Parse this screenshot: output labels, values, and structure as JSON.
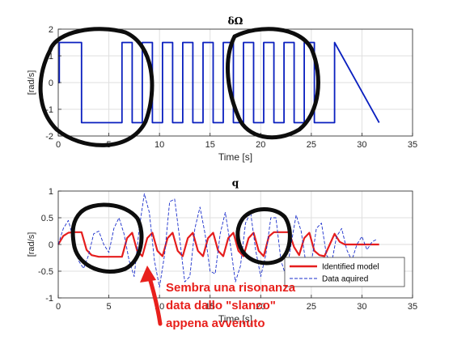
{
  "chart_data": [
    {
      "type": "line",
      "title": "δΩ",
      "xlabel": "Time [s]",
      "ylabel": "[rad/s]",
      "xlim": [
        0,
        35
      ],
      "ylim": [
        -2,
        2
      ],
      "xticks": [
        "0",
        "5",
        "10",
        "15",
        "20",
        "25",
        "30",
        "35"
      ],
      "yticks": [
        "-2",
        "-1",
        "0",
        "1",
        "2"
      ],
      "grid": true,
      "series": [
        {
          "name": "",
          "color": "#0a1fbf",
          "x": [
            0,
            0.1,
            0.1,
            2.3,
            2.3,
            6.3,
            6.3,
            7.3,
            7.3,
            8.3,
            8.3,
            9.3,
            9.3,
            10.3,
            10.3,
            11.3,
            11.3,
            12.3,
            12.3,
            13.3,
            13.3,
            14.3,
            14.3,
            15.3,
            15.3,
            16.3,
            16.3,
            17.3,
            17.3,
            18.3,
            18.3,
            19.3,
            19.3,
            20.3,
            20.3,
            21.3,
            21.3,
            22.3,
            22.3,
            23.3,
            23.3,
            24.3,
            24.3,
            25.3,
            25.3,
            27.3,
            27.3,
            31.7
          ],
          "y": [
            0,
            0,
            1.5,
            1.5,
            -1.5,
            -1.5,
            1.5,
            1.5,
            -1.5,
            -1.5,
            1.5,
            1.5,
            -1.5,
            -1.5,
            1.5,
            1.5,
            -1.5,
            -1.5,
            1.5,
            1.5,
            -1.5,
            -1.5,
            1.5,
            1.5,
            -1.5,
            -1.5,
            1.5,
            1.5,
            -1.5,
            -1.5,
            1.5,
            1.5,
            -1.5,
            -1.5,
            1.5,
            1.5,
            -1.5,
            -1.5,
            1.5,
            1.5,
            -1.5,
            -1.5,
            1.5,
            1.5,
            -1.5,
            -1.5,
            1.5,
            -1.5
          ]
        }
      ]
    },
    {
      "type": "line",
      "title": "q",
      "xlabel": "Time [s]",
      "ylabel": "[rad/s]",
      "xlim": [
        0,
        35
      ],
      "ylim": [
        -1,
        1
      ],
      "xticks": [
        "0",
        "5",
        "10",
        "15",
        "20",
        "25",
        "30",
        "35"
      ],
      "yticks": [
        "-1",
        "-0.5",
        "0",
        "0.5",
        "1"
      ],
      "grid": true,
      "legend": "bottom-right",
      "series": [
        {
          "name": "Identified model",
          "color": "#e51d1d",
          "style": "solid",
          "x": [
            0,
            0.5,
            1.0,
            1.5,
            2.3,
            2.8,
            3.3,
            4.0,
            5.0,
            6.3,
            6.8,
            7.3,
            7.8,
            8.3,
            8.8,
            9.3,
            9.8,
            10.3,
            10.8,
            11.3,
            11.8,
            12.3,
            12.8,
            13.3,
            13.8,
            14.3,
            14.8,
            15.3,
            15.8,
            16.3,
            16.8,
            17.3,
            17.8,
            18.3,
            18.8,
            19.3,
            19.8,
            20.3,
            20.8,
            21.3,
            21.8,
            22.3,
            22.8,
            23.3,
            23.8,
            24.3,
            24.8,
            25.3,
            25.8,
            26.3,
            27.3,
            27.8,
            28.3,
            29.0,
            30.0,
            31.7
          ],
          "y": [
            0,
            0.16,
            0.22,
            0.23,
            0.23,
            -0.1,
            -0.2,
            -0.23,
            -0.23,
            -0.23,
            0.12,
            0.22,
            -0.12,
            -0.22,
            0.12,
            0.22,
            -0.12,
            -0.22,
            0.12,
            0.22,
            -0.12,
            -0.22,
            0.12,
            0.22,
            -0.12,
            -0.22,
            0.12,
            0.22,
            -0.12,
            -0.22,
            0.12,
            0.22,
            -0.12,
            -0.22,
            0.12,
            0.22,
            -0.12,
            -0.22,
            0.15,
            0.23,
            0.23,
            0.23,
            0.23,
            -0.05,
            -0.2,
            0.12,
            0.22,
            -0.12,
            -0.2,
            -0.22,
            0.2,
            0.05,
            0.0,
            0.0,
            0.0,
            0.0
          ]
        },
        {
          "name": "Data aquired",
          "color": "#1a2ecc",
          "style": "dashed",
          "x": [
            0,
            0.5,
            1.0,
            1.5,
            2.0,
            2.5,
            3.0,
            3.5,
            4.0,
            4.5,
            5.0,
            5.5,
            6.0,
            6.5,
            7.0,
            7.5,
            8.0,
            8.5,
            9.0,
            9.5,
            10.0,
            10.5,
            11.0,
            11.5,
            12.0,
            12.5,
            13.0,
            13.5,
            14.0,
            14.5,
            15.0,
            15.5,
            16.0,
            16.5,
            17.0,
            17.5,
            18.0,
            18.5,
            19.0,
            19.5,
            20.0,
            20.5,
            21.0,
            21.5,
            22.0,
            22.5,
            23.0,
            23.5,
            24.0,
            24.5,
            25.0,
            25.5,
            26.0,
            26.5,
            27.0,
            27.5,
            28.0,
            28.5,
            29.0,
            29.5,
            30.0,
            30.5,
            31.0,
            31.5
          ],
          "y": [
            0,
            0.3,
            0.45,
            0.1,
            -0.3,
            -0.45,
            -0.2,
            0.2,
            0.25,
            0.0,
            -0.15,
            0.3,
            0.5,
            0.2,
            -0.3,
            -0.6,
            0.3,
            0.95,
            0.6,
            -0.3,
            -0.8,
            -0.2,
            0.8,
            0.85,
            0.1,
            -0.7,
            -0.6,
            0.3,
            0.7,
            0.2,
            -0.5,
            -0.55,
            0.2,
            0.6,
            0.0,
            -0.7,
            -0.4,
            0.4,
            0.6,
            -0.1,
            -0.6,
            -0.2,
            0.5,
            0.5,
            -0.3,
            -0.6,
            0.0,
            0.55,
            0.25,
            -0.4,
            -0.35,
            0.3,
            0.4,
            -0.2,
            -0.35,
            0.15,
            0.3,
            -0.1,
            -0.3,
            0.0,
            0.15,
            -0.1,
            0.05,
            0.1
          ]
        }
      ]
    }
  ],
  "annotation": {
    "lines": [
      "Sembra una risonanza",
      "data dallo \"slanco\"",
      "appena avvenuto"
    ],
    "color": "#e8201c"
  }
}
